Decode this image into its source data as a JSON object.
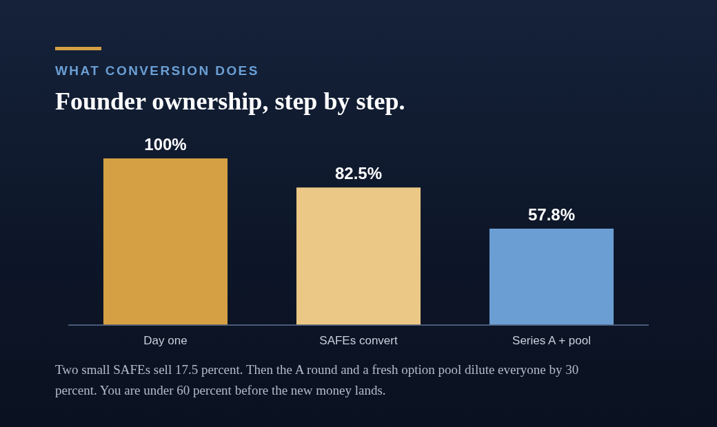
{
  "chart_data": {
    "type": "bar",
    "subtitle": "WHAT CONVERSION DOES",
    "title": "Founder ownership, step by step.",
    "categories": [
      "Day one",
      "SAFEs convert",
      "Series A + pool"
    ],
    "values": [
      100,
      82.5,
      57.8
    ],
    "colors": [
      "#d4a043",
      "#ecc886",
      "#6b9fd4"
    ],
    "data_labels": true,
    "value_labels": [
      "100%",
      "82.5%",
      "57.8%"
    ],
    "annotations": [
      "Two small SAFEs sell 17.5 percent. Then the A round and a fresh option pool dilute everyone by 30 percent. You are under 60 percent before the new money lands."
    ]
  }
}
